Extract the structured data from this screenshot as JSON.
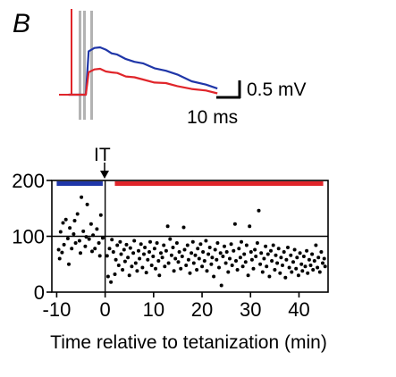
{
  "panel_label": "B",
  "colors": {
    "pre": "#1f36a8",
    "post": "#e0252a",
    "points": "#000000",
    "artifact": "#b3b3b3",
    "axes": "#000000"
  },
  "scale_bar": {
    "voltage_label": "0.5 mV",
    "time_label": "10 ms"
  },
  "annotation": {
    "text": "IT"
  },
  "chart_data": [
    {
      "type": "line",
      "title": "",
      "series": [
        {
          "name": "",
          "color": "#1f36a8",
          "x": [
            0,
            1,
            3,
            5,
            7,
            9,
            11,
            14,
            17,
            20,
            24,
            28,
            32,
            37,
            42,
            46
          ],
          "y": [
            0,
            0.64,
            0.7,
            0.69,
            0.66,
            0.62,
            0.58,
            0.53,
            0.49,
            0.45,
            0.4,
            0.35,
            0.29,
            0.21,
            0.14,
            0.09
          ]
        },
        {
          "name": "",
          "color": "#e0252a",
          "x": [
            0,
            1,
            3,
            5,
            7,
            9,
            11,
            14,
            17,
            20,
            24,
            28,
            32,
            37,
            42,
            46
          ],
          "y": [
            0,
            0.33,
            0.38,
            0.37,
            0.35,
            0.33,
            0.31,
            0.28,
            0.25,
            0.22,
            0.19,
            0.16,
            0.13,
            0.09,
            0.05,
            0.03
          ]
        }
      ]
    },
    {
      "type": "scatter",
      "title": "",
      "xlabel": "Time relative to tetanization (min)",
      "ylabel": "",
      "xlim": [
        -11,
        46
      ],
      "ylim": [
        0,
        200
      ],
      "xticks": [
        -10,
        0,
        10,
        20,
        30,
        40
      ],
      "yticks": [
        0,
        100,
        200
      ],
      "reference_line_y": 100,
      "tetanization_x": 0,
      "periods": [
        {
          "color": "#1f36a8",
          "x": [
            -10,
            -0.5
          ]
        },
        {
          "color": "#e0252a",
          "x": [
            2,
            45
          ]
        }
      ],
      "points": [
        [
          -9.6,
          76
        ],
        [
          -9.2,
          108
        ],
        [
          -8.9,
          71
        ],
        [
          -8.5,
          85
        ],
        [
          -8.1,
          130
        ],
        [
          -7.7,
          96
        ],
        [
          -7.3,
          115
        ],
        [
          -6.9,
          78
        ],
        [
          -6.5,
          104
        ],
        [
          -6.1,
          88
        ],
        [
          -5.7,
          140
        ],
        [
          -5.3,
          92
        ],
        [
          -4.9,
          170
        ],
        [
          -4.5,
          109
        ],
        [
          -4.1,
          82
        ],
        [
          -3.7,
          157
        ],
        [
          -3.3,
          95
        ],
        [
          -2.9,
          122
        ],
        [
          -2.5,
          102
        ],
        [
          -2.1,
          78
        ],
        [
          -1.7,
          113
        ],
        [
          -1.3,
          88
        ],
        [
          -0.9,
          138
        ],
        [
          -0.5,
          97
        ],
        [
          -9.4,
          60
        ],
        [
          -8.7,
          124
        ],
        [
          -7.5,
          50
        ],
        [
          -6.3,
          128
        ],
        [
          -5.1,
          70
        ],
        [
          -3.9,
          99
        ],
        [
          -2.7,
          73
        ],
        [
          -1.1,
          65
        ],
        [
          0.4,
          65
        ],
        [
          0.6,
          28
        ],
        [
          0.9,
          78
        ],
        [
          1.2,
          18
        ],
        [
          1.4,
          94
        ],
        [
          1.7,
          72
        ],
        [
          2.0,
          32
        ],
        [
          2.2,
          58
        ],
        [
          2.5,
          84
        ],
        [
          2.8,
          48
        ],
        [
          3.1,
          90
        ],
        [
          3.3,
          68
        ],
        [
          3.6,
          40
        ],
        [
          3.9,
          76
        ],
        [
          4.1,
          55
        ],
        [
          4.4,
          85
        ],
        [
          4.7,
          62
        ],
        [
          5.0,
          30
        ],
        [
          5.2,
          79
        ],
        [
          5.5,
          46
        ],
        [
          5.8,
          70
        ],
        [
          6.0,
          92
        ],
        [
          6.3,
          52
        ],
        [
          6.6,
          38
        ],
        [
          6.9,
          74
        ],
        [
          7.1,
          60
        ],
        [
          7.4,
          86
        ],
        [
          7.7,
          44
        ],
        [
          8.0,
          68
        ],
        [
          8.2,
          80
        ],
        [
          8.5,
          35
        ],
        [
          8.8,
          58
        ],
        [
          9.1,
          72
        ],
        [
          9.3,
          90
        ],
        [
          9.6,
          48
        ],
        [
          9.9,
          64
        ],
        [
          10.2,
          78
        ],
        [
          10.4,
          42
        ],
        [
          10.7,
          88
        ],
        [
          11.0,
          56
        ],
        [
          11.2,
          30
        ],
        [
          11.5,
          70
        ],
        [
          11.8,
          62
        ],
        [
          12.1,
          84
        ],
        [
          12.3,
          46
        ],
        [
          12.6,
          74
        ],
        [
          12.9,
          118
        ],
        [
          13.1,
          52
        ],
        [
          13.4,
          95
        ],
        [
          13.7,
          66
        ],
        [
          14.0,
          80
        ],
        [
          14.2,
          38
        ],
        [
          14.5,
          60
        ],
        [
          14.8,
          88
        ],
        [
          15.1,
          54
        ],
        [
          15.3,
          72
        ],
        [
          15.6,
          42
        ],
        [
          15.9,
          64
        ],
        [
          16.2,
          116
        ],
        [
          16.4,
          76
        ],
        [
          16.7,
          48
        ],
        [
          17.0,
          84
        ],
        [
          17.2,
          58
        ],
        [
          17.5,
          34
        ],
        [
          17.8,
          70
        ],
        [
          18.1,
          90
        ],
        [
          18.3,
          52
        ],
        [
          18.6,
          66
        ],
        [
          18.9,
          40
        ],
        [
          19.1,
          78
        ],
        [
          19.4,
          60
        ],
        [
          19.7,
          86
        ],
        [
          20.0,
          46
        ],
        [
          20.2,
          72
        ],
        [
          20.5,
          56
        ],
        [
          20.8,
          92
        ],
        [
          21.0,
          38
        ],
        [
          21.3,
          68
        ],
        [
          21.6,
          80
        ],
        [
          21.9,
          50
        ],
        [
          22.1,
          62
        ],
        [
          22.4,
          28
        ],
        [
          22.7,
          76
        ],
        [
          23.0,
          58
        ],
        [
          23.2,
          88
        ],
        [
          23.5,
          44
        ],
        [
          23.8,
          70
        ],
        [
          24.0,
          12
        ],
        [
          24.3,
          64
        ],
        [
          24.6,
          82
        ],
        [
          24.9,
          52
        ],
        [
          25.1,
          72
        ],
        [
          25.4,
          36
        ],
        [
          25.7,
          60
        ],
        [
          26.0,
          86
        ],
        [
          26.2,
          48
        ],
        [
          26.5,
          74
        ],
        [
          26.8,
          122
        ],
        [
          27.0,
          56
        ],
        [
          27.3,
          40
        ],
        [
          27.6,
          78
        ],
        [
          27.9,
          62
        ],
        [
          28.1,
          90
        ],
        [
          28.4,
          46
        ],
        [
          28.7,
          68
        ],
        [
          29.0,
          54
        ],
        [
          29.2,
          84
        ],
        [
          29.5,
          30
        ],
        [
          29.8,
          118
        ],
        [
          30.1,
          72
        ],
        [
          30.3,
          58
        ],
        [
          30.6,
          42
        ],
        [
          30.9,
          76
        ],
        [
          31.1,
          64
        ],
        [
          31.4,
          88
        ],
        [
          31.7,
          146
        ],
        [
          32.0,
          50
        ],
        [
          32.2,
          70
        ],
        [
          32.5,
          36
        ],
        [
          32.8,
          60
        ],
        [
          33.1,
          82
        ],
        [
          33.3,
          46
        ],
        [
          33.6,
          68
        ],
        [
          33.9,
          28
        ],
        [
          34.2,
          74
        ],
        [
          34.4,
          56
        ],
        [
          34.7,
          84
        ],
        [
          35.0,
          40
        ],
        [
          35.2,
          66
        ],
        [
          35.5,
          52
        ],
        [
          35.8,
          78
        ],
        [
          36.1,
          34
        ],
        [
          36.3,
          62
        ],
        [
          36.6,
          48
        ],
        [
          36.9,
          72
        ],
        [
          37.2,
          26
        ],
        [
          37.4,
          58
        ],
        [
          37.7,
          80
        ],
        [
          38.0,
          44
        ],
        [
          38.3,
          66
        ],
        [
          38.5,
          36
        ],
        [
          38.8,
          54
        ],
        [
          39.1,
          76
        ],
        [
          39.4,
          42
        ],
        [
          39.6,
          62
        ],
        [
          39.9,
          30
        ],
        [
          40.2,
          70
        ],
        [
          40.5,
          50
        ],
        [
          40.7,
          38
        ],
        [
          41.0,
          64
        ],
        [
          41.3,
          46
        ],
        [
          41.6,
          74
        ],
        [
          41.8,
          34
        ],
        [
          42.1,
          58
        ],
        [
          42.4,
          48
        ],
        [
          42.7,
          68
        ],
        [
          42.9,
          40
        ],
        [
          43.2,
          56
        ],
        [
          43.5,
          84
        ],
        [
          43.8,
          44
        ],
        [
          44.0,
          62
        ],
        [
          44.3,
          36
        ],
        [
          44.6,
          72
        ],
        [
          44.9,
          52
        ],
        [
          45.2,
          60
        ],
        [
          45.4,
          46
        ]
      ]
    }
  ]
}
